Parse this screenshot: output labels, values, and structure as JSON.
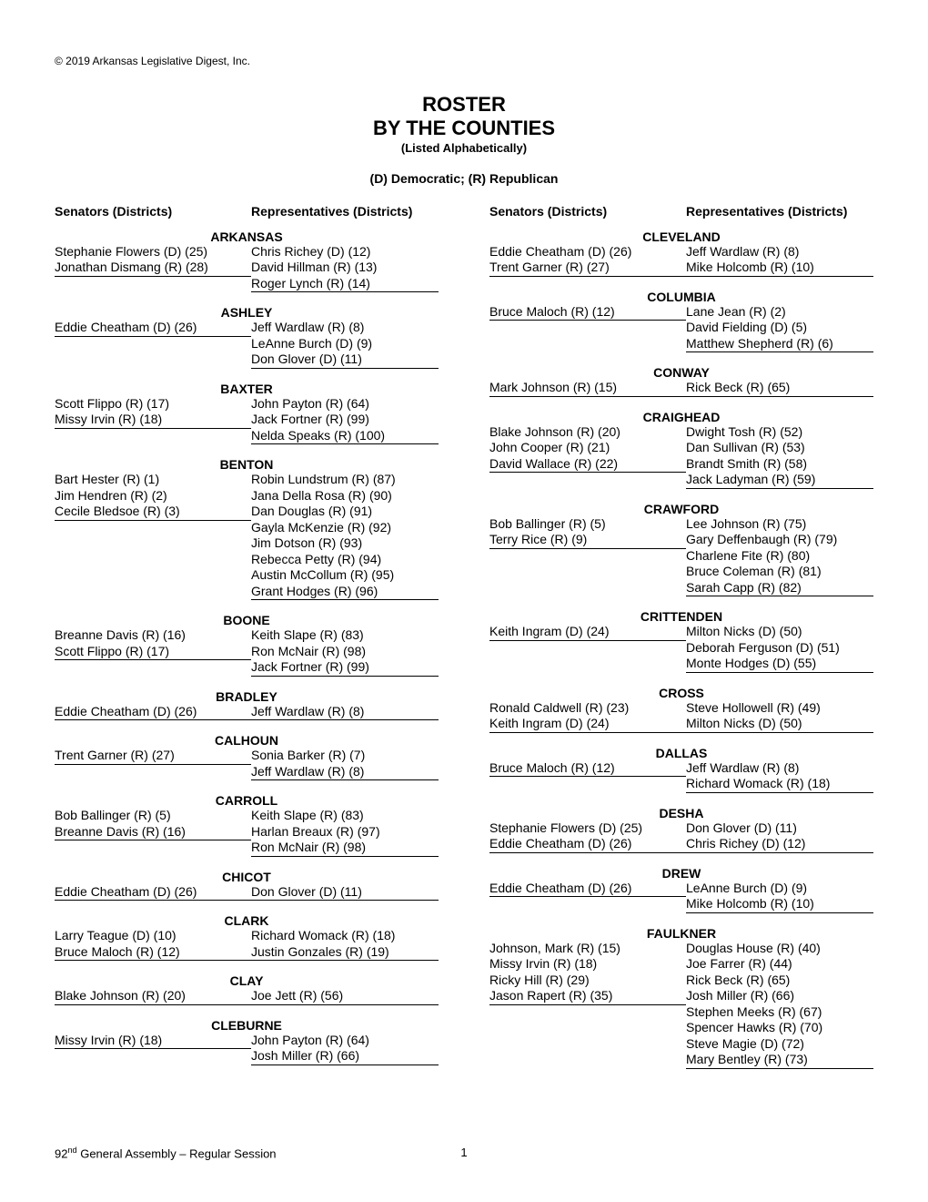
{
  "copyright": "© 2019 Arkansas Legislative Digest, Inc.",
  "title_line1": "ROSTER",
  "title_line2": "BY THE COUNTIES",
  "title_sub": "(Listed Alphabetically)",
  "party_key": "(D) Democratic; (R) Republican",
  "hdr_senators": "Senators (Districts)",
  "hdr_reps": "Representatives (Districts)",
  "footer_session": "92",
  "footer_session_suffix": "nd",
  "footer_session_tail": " General Assembly – Regular Session",
  "footer_page": "1",
  "left_counties": [
    {
      "name": "ARKANSAS",
      "senators": [
        "Stephanie Flowers (D) (25)",
        "Jonathan Dismang (R) (28)"
      ],
      "reps": [
        "Chris Richey (D) (12)",
        "David Hillman (R) (13)",
        "Roger Lynch (R) (14)"
      ]
    },
    {
      "name": "ASHLEY",
      "senators": [
        "Eddie Cheatham (D) (26)"
      ],
      "reps": [
        "Jeff Wardlaw (R) (8)",
        "LeAnne Burch (D) (9)",
        "Don Glover (D) (11)"
      ]
    },
    {
      "name": "BAXTER",
      "senators": [
        "Scott Flippo (R) (17)",
        "Missy Irvin (R) (18)"
      ],
      "reps": [
        "John Payton (R) (64)",
        "Jack Fortner (R) (99)",
        "Nelda Speaks (R) (100)"
      ]
    },
    {
      "name": "BENTON",
      "senators": [
        "Bart Hester (R) (1)",
        "Jim Hendren (R) (2)",
        "Cecile Bledsoe (R) (3)"
      ],
      "reps": [
        "Robin Lundstrum (R) (87)",
        "Jana Della Rosa (R) (90)",
        "Dan Douglas (R) (91)",
        "Gayla McKenzie (R) (92)",
        "Jim Dotson (R) (93)",
        "Rebecca Petty (R) (94)",
        "Austin McCollum (R) (95)",
        "Grant Hodges (R) (96)"
      ]
    },
    {
      "name": "BOONE",
      "senators": [
        "Breanne Davis (R)  (16)",
        "Scott Flippo (R) (17)"
      ],
      "reps": [
        "Keith Slape (R) (83)",
        "Ron McNair (R) (98)",
        "Jack Fortner (R) (99)"
      ]
    },
    {
      "name": "BRADLEY",
      "senators": [
        "Eddie Cheatham (D) (26)"
      ],
      "reps": [
        "Jeff Wardlaw (R) (8)"
      ]
    },
    {
      "name": "CALHOUN",
      "senators": [
        "Trent Garner (R) (27)"
      ],
      "reps": [
        "Sonia Barker (R) (7)",
        "Jeff Wardlaw (R) (8)"
      ]
    },
    {
      "name": "CARROLL",
      "senators": [
        "Bob Ballinger (R) (5)",
        "Breanne Davis (R)  (16)"
      ],
      "reps": [
        "Keith Slape (R) (83)",
        "Harlan Breaux (R) (97)",
        "Ron McNair (R) (98)"
      ]
    },
    {
      "name": "CHICOT",
      "senators": [
        "Eddie Cheatham (D) (26)"
      ],
      "reps": [
        "Don Glover (D) (11)"
      ]
    },
    {
      "name": "CLARK",
      "senators": [
        "Larry Teague (D) (10)",
        "Bruce Maloch (R) (12)"
      ],
      "reps": [
        "Richard Womack (R) (18)",
        "Justin Gonzales (R) (19)"
      ]
    },
    {
      "name": "CLAY",
      "senators": [
        "Blake Johnson (R) (20)"
      ],
      "reps": [
        "Joe Jett (R) (56)"
      ]
    },
    {
      "name": "CLEBURNE",
      "senators": [
        "Missy Irvin (R) (18)"
      ],
      "reps": [
        "John Payton (R) (64)",
        "Josh Miller (R) (66)"
      ]
    }
  ],
  "right_counties": [
    {
      "name": "CLEVELAND",
      "senators": [
        "Eddie Cheatham (D) (26)",
        "Trent Garner (R) (27)"
      ],
      "reps": [
        "Jeff Wardlaw (R) (8)",
        "Mike Holcomb (R) (10)"
      ]
    },
    {
      "name": "COLUMBIA",
      "senators": [
        "Bruce Maloch (R) (12)"
      ],
      "reps": [
        "Lane Jean (R) (2)",
        "David Fielding (D) (5)",
        "Matthew Shepherd (R) (6)"
      ]
    },
    {
      "name": "CONWAY",
      "senators": [
        "Mark Johnson (R) (15)"
      ],
      "reps": [
        "Rick Beck (R) (65)"
      ]
    },
    {
      "name": "CRAIGHEAD",
      "senators": [
        "Blake Johnson (R) (20)",
        "John Cooper (R) (21)",
        "David Wallace (R) (22)"
      ],
      "reps": [
        "Dwight Tosh (R) (52)",
        "Dan Sullivan (R) (53)",
        "Brandt Smith (R) (58)",
        "Jack Ladyman (R) (59)"
      ]
    },
    {
      "name": "CRAWFORD",
      "senators": [
        "Bob Ballinger (R) (5)",
        "Terry Rice (R) (9)"
      ],
      "reps": [
        "Lee Johnson (R) (75)",
        "Gary Deffenbaugh (R) (79)",
        "Charlene Fite (R) (80)",
        "Bruce Coleman (R) (81)",
        "Sarah Capp (R) (82)"
      ]
    },
    {
      "name": "CRITTENDEN",
      "senators": [
        "Keith Ingram (D) (24)"
      ],
      "reps": [
        "Milton Nicks (D) (50)",
        "Deborah Ferguson (D) (51)",
        "Monte Hodges (D) (55)"
      ]
    },
    {
      "name": "CROSS",
      "senators": [
        "Ronald Caldwell (R) (23)",
        "Keith Ingram (D) (24)"
      ],
      "reps": [
        "Steve Hollowell (R) (49)",
        "Milton Nicks (D) (50)"
      ]
    },
    {
      "name": "DALLAS",
      "senators": [
        "Bruce Maloch (R) (12)"
      ],
      "reps": [
        "Jeff Wardlaw (R) (8)",
        "Richard Womack (R) (18)"
      ]
    },
    {
      "name": "DESHA",
      "senators": [
        "Stephanie Flowers (D) (25)",
        "Eddie Cheatham (D) (26)"
      ],
      "reps": [
        "Don Glover (D) (11)",
        "Chris Richey (D) (12)"
      ]
    },
    {
      "name": "DREW",
      "senators": [
        "Eddie Cheatham (D) (26)"
      ],
      "reps": [
        "LeAnne Burch (D) (9)",
        "Mike Holcomb (R) (10)"
      ]
    },
    {
      "name": "FAULKNER",
      "senators": [
        "Johnson, Mark (R) (15)",
        "Missy Irvin (R) (18)",
        "Ricky Hill (R) (29)",
        "Jason Rapert (R) (35)"
      ],
      "reps": [
        "Douglas House (R) (40)",
        "Joe Farrer (R) (44)",
        "Rick Beck (R) (65)",
        "Josh Miller (R) (66)",
        "Stephen Meeks (R) (67)",
        "Spencer Hawks (R) (70)",
        "Steve Magie (D) (72)",
        "Mary Bentley (R) (73)"
      ]
    }
  ]
}
